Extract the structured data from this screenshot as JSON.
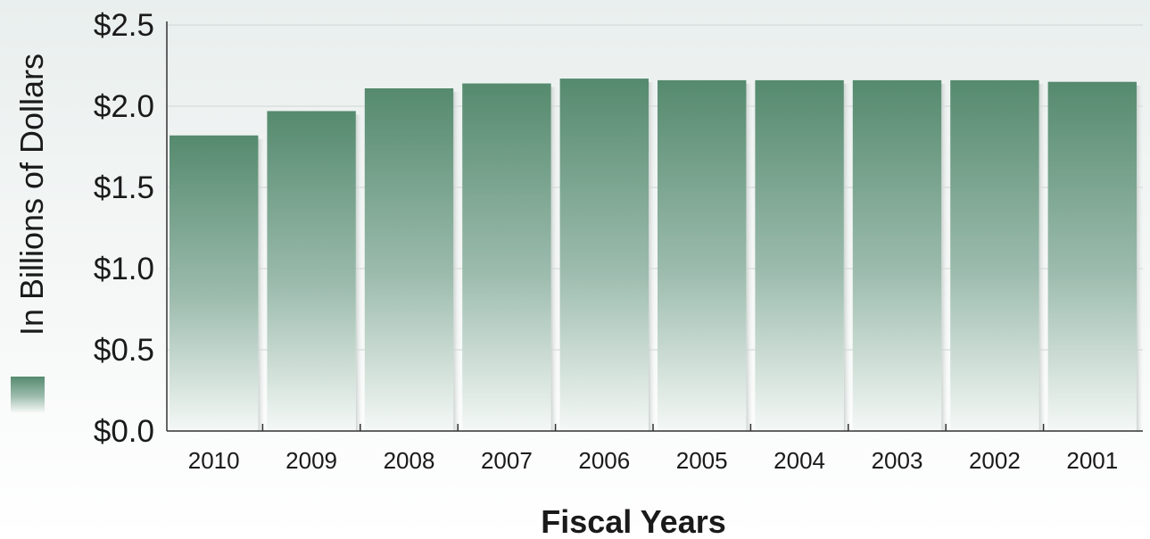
{
  "chart_data": {
    "type": "bar",
    "title": "",
    "xlabel": "Fiscal Years",
    "ylabel": "In Billions of Dollars",
    "categories": [
      "2010",
      "2009",
      "2008",
      "2007",
      "2006",
      "2005",
      "2004",
      "2003",
      "2002",
      "2001"
    ],
    "values": [
      1.82,
      1.97,
      2.11,
      2.14,
      2.17,
      2.16,
      2.16,
      2.16,
      2.16,
      2.15
    ],
    "ylim": [
      0,
      2.5
    ],
    "yticks": [
      "$0.0",
      "$0.5",
      "$1.0",
      "$1.5",
      "$2.0",
      "$2.5"
    ],
    "grid": true,
    "bar_color_top": "#558a6e",
    "bar_color_bottom": "#f4f8f6",
    "legend_swatch": true
  }
}
